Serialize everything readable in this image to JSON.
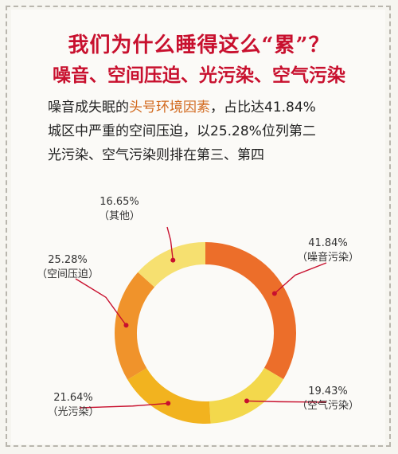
{
  "title_line1": "我们为什么睡得这么“累”？",
  "title_line2": "噪音、空间压迫、光污染、空气污染",
  "desc": {
    "line1_before": "噪音成失眠的",
    "line1_highlight": "头号环境因素",
    "line1_after": "，占比达41.84%",
    "line2": "城区中严重的空间压迫，以25.28%位列第二",
    "line3": "光污染、空气污染则排在第三、第四"
  },
  "chart_data": {
    "type": "pie",
    "donut": true,
    "title": "",
    "slices": [
      {
        "label": "（噪音污染）",
        "value": 41.84,
        "pct_text": "41.84%",
        "color": "#ec6e2a"
      },
      {
        "label": "（空气污染）",
        "value": 19.43,
        "pct_text": "19.43%",
        "color": "#f3d84c"
      },
      {
        "label": "（光污染）",
        "value": 21.64,
        "pct_text": "21.64%",
        "color": "#f2b31f"
      },
      {
        "label": "（空间压迫）",
        "value": 25.28,
        "pct_text": "25.28%",
        "color": "#f0932b"
      },
      {
        "label": "（其他）",
        "value": 16.65,
        "pct_text": "16.65%",
        "color": "#f6e070"
      }
    ],
    "leader_color": "#c8102e"
  }
}
